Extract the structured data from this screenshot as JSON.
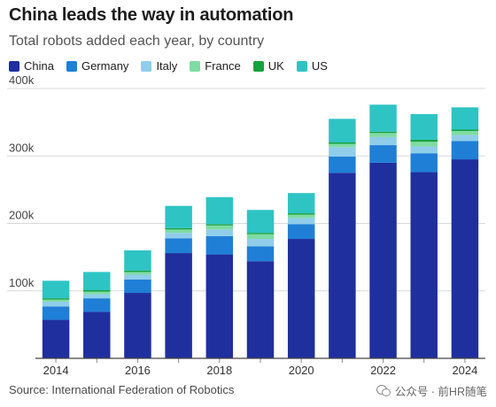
{
  "chart_data": {
    "type": "bar",
    "stacked": true,
    "title": "China leads the way in automation",
    "subtitle": "Total robots added each year, by country",
    "categories": [
      "2014",
      "2015",
      "2016",
      "2017",
      "2018",
      "2019",
      "2020",
      "2021",
      "2022",
      "2023",
      "2024"
    ],
    "x_tick_labels": [
      "2014",
      "",
      "2016",
      "",
      "2018",
      "",
      "2020",
      "",
      "2022",
      "",
      "2024"
    ],
    "y_ticks": [
      100000,
      200000,
      300000,
      400000
    ],
    "y_tick_labels": [
      "100k",
      "200k",
      "300k",
      "400k"
    ],
    "ylim": [
      0,
      400000
    ],
    "legend_position": "top-left",
    "grid": true,
    "series": [
      {
        "name": "China",
        "color": "#1f2f9e",
        "values": [
          57000,
          69000,
          97000,
          156000,
          154000,
          144000,
          177000,
          275000,
          290000,
          276000,
          295000
        ]
      },
      {
        "name": "Germany",
        "color": "#1f7fd6",
        "values": [
          20000,
          20000,
          20000,
          22000,
          27000,
          22000,
          22000,
          24000,
          26000,
          28000,
          27000
        ]
      },
      {
        "name": "Italy",
        "color": "#8fcdea",
        "values": [
          7000,
          6000,
          7000,
          8000,
          10000,
          11000,
          9000,
          14000,
          12000,
          10000,
          9000
        ]
      },
      {
        "name": "France",
        "color": "#7fdca3",
        "values": [
          3000,
          4000,
          4000,
          5000,
          6000,
          7000,
          5000,
          5000,
          6000,
          7000,
          6000
        ]
      },
      {
        "name": "UK",
        "color": "#16a23e",
        "values": [
          2000,
          2000,
          2000,
          2000,
          2000,
          2000,
          2000,
          2000,
          2000,
          3000,
          2000
        ]
      },
      {
        "name": "US",
        "color": "#2ec4c4",
        "values": [
          26000,
          27000,
          30000,
          33000,
          40000,
          34000,
          30000,
          35000,
          40000,
          38000,
          33000
        ]
      }
    ],
    "source": "Source: International Federation of Robotics"
  },
  "watermark": {
    "icon": "wechat-icon",
    "text": "公众号 · 前HR随笔"
  }
}
